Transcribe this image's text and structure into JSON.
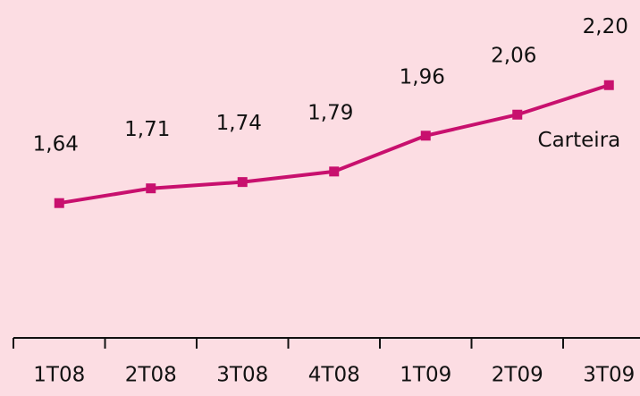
{
  "chart_data": {
    "type": "line",
    "categories": [
      "1T08",
      "2T08",
      "3T08",
      "4T08",
      "1T09",
      "2T09",
      "3T09"
    ],
    "series": [
      {
        "name": "Carteira",
        "color": "#c8106e",
        "values": [
          1.64,
          1.71,
          1.74,
          1.79,
          1.96,
          2.06,
          2.2
        ],
        "value_labels": [
          "1,64",
          "1,71",
          "1,74",
          "1,79",
          "1,96",
          "2,06",
          "2,20"
        ]
      }
    ],
    "ylim": [
      1.0,
      2.6
    ]
  }
}
